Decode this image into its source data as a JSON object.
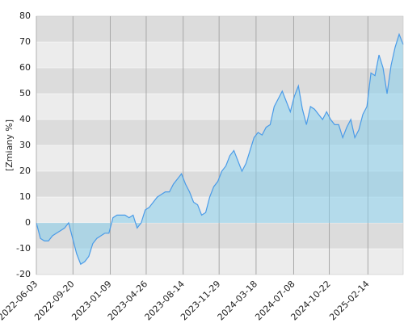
{
  "chart_data": {
    "type": "area",
    "y_label": "[Zmiany %]",
    "x": [
      "2022-06-03",
      "2022-06-15",
      "2022-06-27",
      "2022-07-09",
      "2022-07-21",
      "2022-08-02",
      "2022-08-14",
      "2022-08-26",
      "2022-09-07",
      "2022-09-19",
      "2022-10-01",
      "2022-10-13",
      "2022-10-25",
      "2022-11-06",
      "2022-11-18",
      "2022-11-30",
      "2022-12-12",
      "2022-12-24",
      "2023-01-05",
      "2023-01-17",
      "2023-01-29",
      "2023-02-10",
      "2023-02-22",
      "2023-03-06",
      "2023-03-18",
      "2023-03-30",
      "2023-04-11",
      "2023-04-23",
      "2023-05-05",
      "2023-05-17",
      "2023-05-29",
      "2023-06-10",
      "2023-06-22",
      "2023-07-04",
      "2023-07-16",
      "2023-07-28",
      "2023-08-09",
      "2023-08-21",
      "2023-09-02",
      "2023-09-14",
      "2023-09-26",
      "2023-10-08",
      "2023-10-20",
      "2023-11-01",
      "2023-11-13",
      "2023-11-25",
      "2023-12-07",
      "2023-12-19",
      "2023-12-31",
      "2024-01-12",
      "2024-01-24",
      "2024-02-05",
      "2024-02-17",
      "2024-02-29",
      "2024-03-12",
      "2024-03-24",
      "2024-04-05",
      "2024-04-17",
      "2024-04-29",
      "2024-05-11",
      "2024-05-23",
      "2024-06-04",
      "2024-06-16",
      "2024-06-28",
      "2024-07-10",
      "2024-07-22",
      "2024-08-03",
      "2024-08-15",
      "2024-08-27",
      "2024-09-08",
      "2024-09-20",
      "2024-10-02",
      "2024-10-14",
      "2024-10-26",
      "2024-11-07",
      "2024-11-19",
      "2024-12-01",
      "2024-12-13",
      "2024-12-25",
      "2025-01-06",
      "2025-01-18",
      "2025-01-30",
      "2025-02-11",
      "2025-02-23",
      "2025-03-07",
      "2025-03-19",
      "2025-03-31",
      "2025-04-12",
      "2025-04-24",
      "2025-05-06",
      "2025-05-18",
      "2025-05-30"
    ],
    "values": [
      0,
      -6,
      -7,
      -7,
      -5,
      -4,
      -3,
      -2,
      0,
      -6,
      -12,
      -16,
      -15,
      -13,
      -8,
      -6,
      -5,
      -4,
      -4,
      2,
      3,
      3,
      3,
      2,
      3,
      -2,
      0,
      5,
      6,
      8,
      10,
      11,
      12,
      12,
      15,
      17,
      19,
      15,
      12,
      8,
      7,
      3,
      4,
      10,
      14,
      16,
      20,
      22,
      26,
      28,
      24,
      20,
      23,
      28,
      33,
      35,
      34,
      37,
      38,
      45,
      48,
      51,
      47,
      43,
      49,
      53,
      44,
      38,
      45,
      44,
      42,
      40,
      43,
      40,
      38,
      38,
      33,
      37,
      40,
      33,
      36,
      42,
      45,
      58,
      57,
      65,
      60,
      50,
      61,
      68,
      73,
      69
    ],
    "color": "#87ceeb",
    "line_color": "#4a9be8",
    "xlim": [
      "2022-06-03",
      "2025-05-30"
    ],
    "xticks": [
      "2022-06-03",
      "2022-09-20",
      "2023-01-09",
      "2023-04-26",
      "2023-08-14",
      "2023-11-29",
      "2024-03-18",
      "2024-07-08",
      "2024-10-22",
      "2025-02-14"
    ],
    "ylim": [
      -20,
      80
    ],
    "yticks": [
      -20,
      -10,
      0,
      10,
      20,
      30,
      40,
      50,
      60,
      70,
      80
    ],
    "grid": true
  }
}
